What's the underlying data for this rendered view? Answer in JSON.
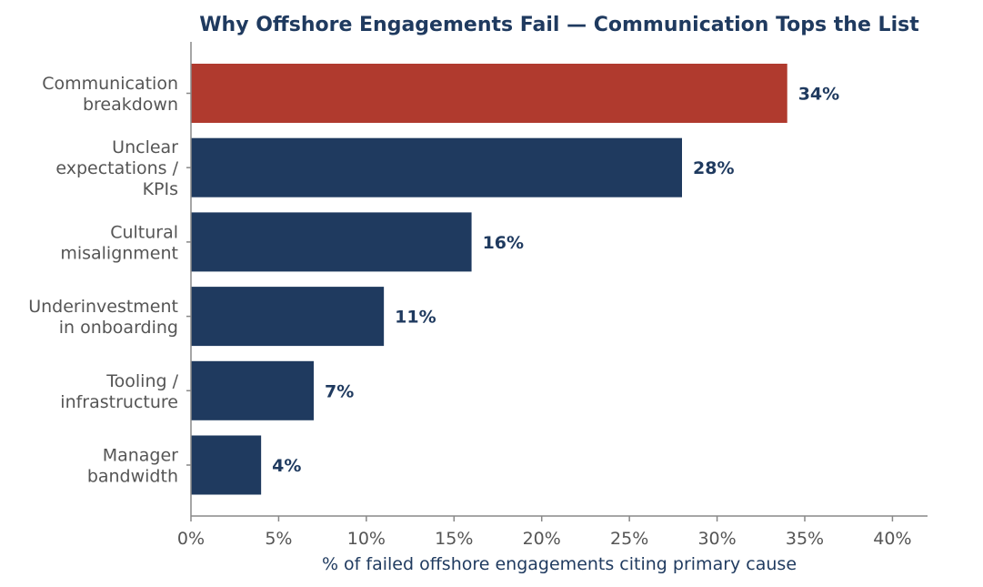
{
  "chart_data": {
    "type": "bar",
    "orientation": "horizontal",
    "title": "Why Offshore Engagements Fail — Communication Tops the List",
    "xlabel": "% of failed offshore engagements citing primary cause",
    "ylabel": "",
    "xlim": [
      0,
      42
    ],
    "xticks": [
      0,
      5,
      10,
      15,
      20,
      25,
      30,
      35,
      40
    ],
    "xtick_labels": [
      "0%",
      "5%",
      "10%",
      "15%",
      "20%",
      "25%",
      "30%",
      "35%",
      "40%"
    ],
    "categories": [
      [
        "Communication",
        "breakdown"
      ],
      [
        "Unclear",
        "expectations /",
        "KPIs"
      ],
      [
        "Cultural",
        "misalignment"
      ],
      [
        "Underinvestment",
        "in onboarding"
      ],
      [
        "Tooling /",
        "infrastructure"
      ],
      [
        "Manager",
        "bandwidth"
      ]
    ],
    "values": [
      34,
      28,
      16,
      11,
      7,
      4
    ],
    "value_labels": [
      "34%",
      "28%",
      "16%",
      "11%",
      "7%",
      "4%"
    ],
    "highlight_index": 0,
    "colors": {
      "highlight": "#b03a2e",
      "bar": "#1f3a5f",
      "title": "#1f3a5f",
      "value_label": "#1f3a5f",
      "axis": "#888888"
    },
    "grid": false
  }
}
